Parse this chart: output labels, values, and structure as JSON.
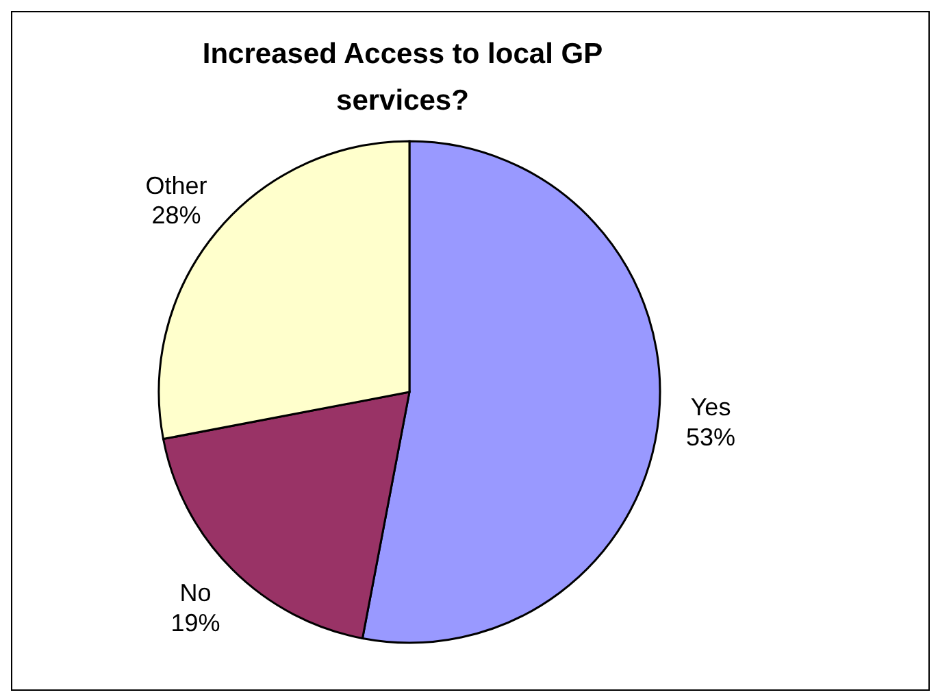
{
  "chart_data": {
    "type": "pie",
    "title": "Increased Access to local GP services?",
    "categories": [
      "Yes",
      "No",
      "Other"
    ],
    "values": [
      53,
      19,
      28
    ],
    "value_labels": [
      "53%",
      "19%",
      "28%"
    ],
    "colors": [
      "#9999ff",
      "#993366",
      "#ffffcc"
    ]
  }
}
